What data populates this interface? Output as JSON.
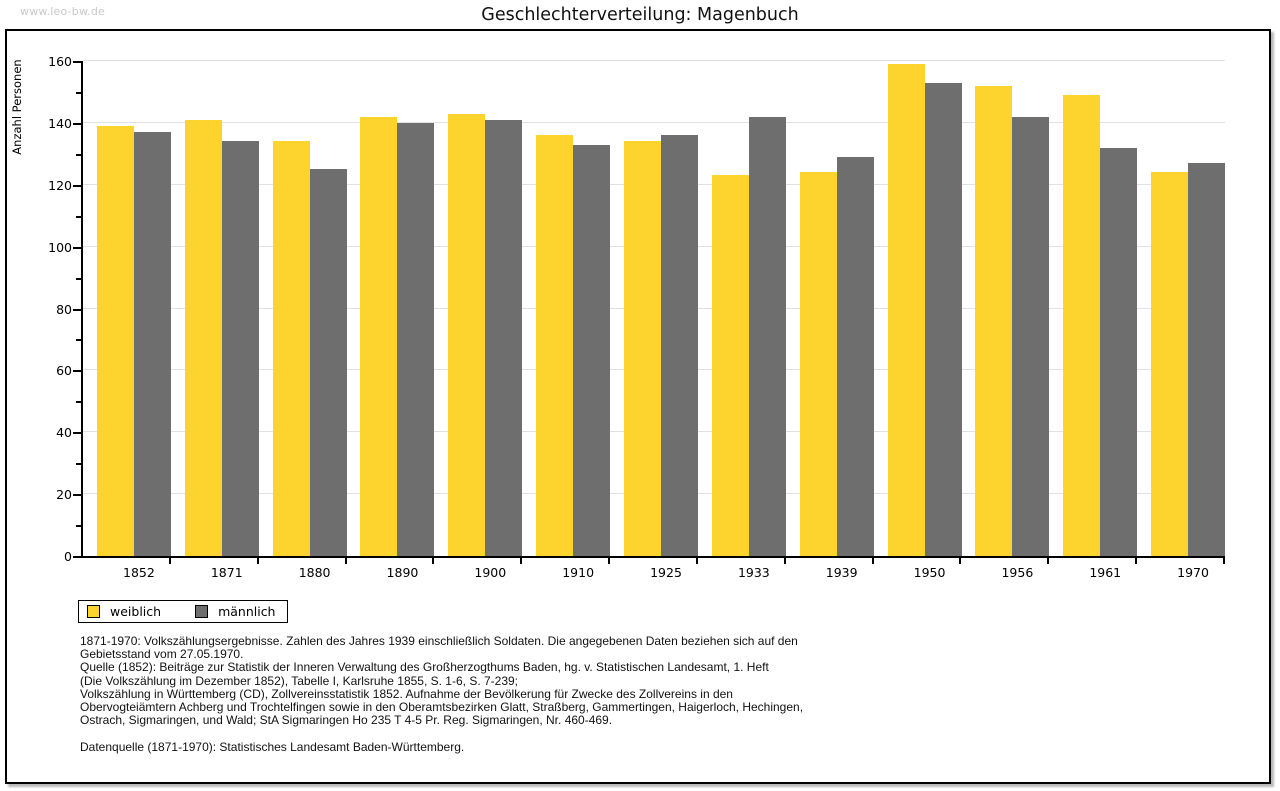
{
  "page": {
    "watermark": "www.leo-bw.de"
  },
  "chart_data": {
    "type": "bar",
    "title": "Geschlechterverteilung: Magenbuch",
    "ylabel": "Anzahl Personen",
    "xlabel": "",
    "categories": [
      "1852",
      "1871",
      "1880",
      "1890",
      "1900",
      "1910",
      "1925",
      "1933",
      "1939",
      "1950",
      "1956",
      "1961",
      "1970"
    ],
    "series": [
      {
        "name": "weiblich",
        "color": "#FCD42D",
        "values": [
          139,
          141,
          134,
          142,
          143,
          136,
          134,
          123,
          124,
          159,
          152,
          149,
          124
        ]
      },
      {
        "name": "männlich",
        "color": "#6E6E6E",
        "values": [
          137,
          134,
          125,
          140,
          141,
          133,
          136,
          142,
          129,
          153,
          142,
          132,
          127
        ]
      }
    ],
    "ylim": [
      0,
      160
    ],
    "ytick_step": 20,
    "yminor_step": 10,
    "grid": true,
    "gridline_color": "#E1E1E1",
    "legend_position": "bottom-left"
  },
  "footnotes": {
    "lines": [
      "1871-1970: Volkszählungsergebnisse. Zahlen des Jahres 1939 einschließlich Soldaten. Die angegebenen Daten beziehen sich auf den",
      "Gebietsstand vom 27.05.1970.",
      "Quelle (1852): Beiträge zur Statistik der Inneren Verwaltung des Großherzogthums Baden, hg. v. Statistischen Landesamt, 1. Heft",
      "(Die Volkszählung im Dezember 1852), Tabelle I, Karlsruhe 1855, S. 1-6, S. 7-239;",
      "Volkszählung in Württemberg (CD), Zollvereinsstatistik 1852. Aufnahme der Bevölkerung für Zwecke des Zollvereins in den",
      "Obervogteiämtern Achberg und Trochtelfingen sowie in den Oberamtsbezirken Glatt, Straßberg, Gammertingen, Haigerloch, Hechingen,",
      "Ostrach, Sigmaringen, und Wald; StA Sigmaringen Ho 235 T 4-5 Pr. Reg. Sigmaringen, Nr. 460-469.",
      "",
      "Datenquelle (1871-1970): Statistisches Landesamt Baden-Württemberg."
    ]
  }
}
